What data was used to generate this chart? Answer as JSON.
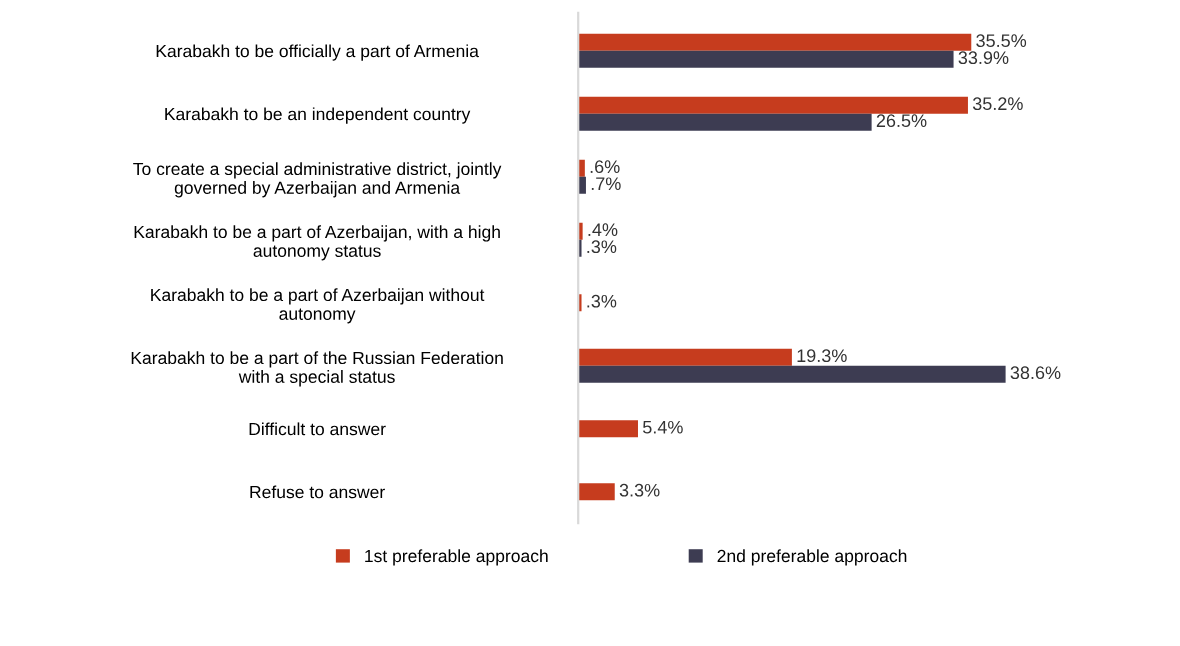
{
  "chart_data": {
    "type": "bar",
    "orientation": "horizontal",
    "categories": [
      "Karabakh to be officially a part of Armenia",
      "Karabakh to be an independent country",
      "To create a special administrative district, jointly\ngoverned by Azerbaijan and Armenia",
      "Karabakh to be a part of Azerbaijan, with a high\nautonomy status",
      "Karabakh to be a part of Azerbaijan without\nautonomy",
      "Karabakh to be a part of the Russian Federation\nwith a special status",
      "Difficult to answer",
      "Refuse to answer"
    ],
    "series": [
      {
        "name": "1st preferable approach",
        "color": "#c63c1e",
        "values": [
          35.5,
          35.2,
          0.6,
          0.4,
          0.3,
          19.3,
          5.4,
          3.3
        ],
        "value_labels": [
          "35.5%",
          "35.2%",
          ".6%",
          ".4%",
          ".3%",
          "19.3%",
          "5.4%",
          "3.3%"
        ]
      },
      {
        "name": "2nd preferable approach",
        "color": "#3d3c52",
        "values": [
          33.9,
          26.5,
          0.7,
          0.3,
          null,
          38.6,
          null,
          null
        ],
        "value_labels": [
          "33.9%",
          "26.5%",
          ".7%",
          ".3%",
          null,
          "38.6%",
          null,
          null
        ]
      }
    ],
    "legend": "bottom",
    "grid": false,
    "tick_labels": "y"
  }
}
